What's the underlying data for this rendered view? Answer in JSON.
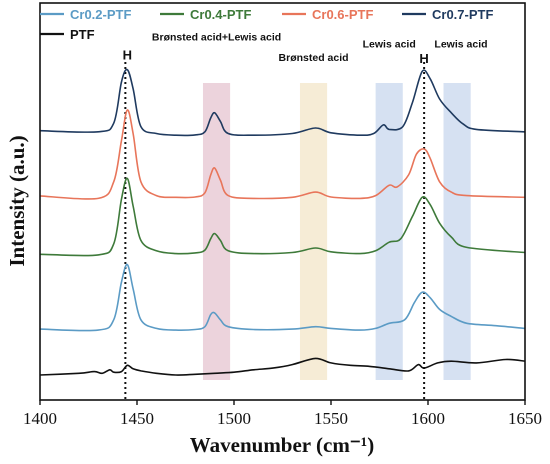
{
  "chart_data": {
    "type": "line",
    "title": "",
    "xlabel": "Wavenumber (cm⁻¹)",
    "ylabel": "Intensity (a.u.)",
    "xlim": [
      1400,
      1650
    ],
    "x_ticks": [
      "1400",
      "1450",
      "1500",
      "1550",
      "1600",
      "1650"
    ],
    "grid": false,
    "legend_position": "top",
    "series": [
      {
        "name": "Cr0.7-PTF",
        "color": "#1f3a5f",
        "points": [
          [
            1400,
            0.708
          ],
          [
            1430,
            0.705
          ],
          [
            1438,
            0.73
          ],
          [
            1442,
            0.85
          ],
          [
            1445,
            0.885
          ],
          [
            1448,
            0.83
          ],
          [
            1452,
            0.72
          ],
          [
            1460,
            0.7
          ],
          [
            1470,
            0.695
          ],
          [
            1480,
            0.696
          ],
          [
            1485,
            0.705
          ],
          [
            1488,
            0.745
          ],
          [
            1490,
            0.76
          ],
          [
            1493,
            0.735
          ],
          [
            1497,
            0.7
          ],
          [
            1510,
            0.695
          ],
          [
            1530,
            0.7
          ],
          [
            1542,
            0.716
          ],
          [
            1550,
            0.702
          ],
          [
            1565,
            0.695
          ],
          [
            1572,
            0.7
          ],
          [
            1577,
            0.725
          ],
          [
            1580,
            0.712
          ],
          [
            1587,
            0.72
          ],
          [
            1592,
            0.79
          ],
          [
            1597,
            0.88
          ],
          [
            1601,
            0.86
          ],
          [
            1606,
            0.8
          ],
          [
            1612,
            0.76
          ],
          [
            1618,
            0.728
          ],
          [
            1625,
            0.712
          ],
          [
            1650,
            0.705
          ]
        ]
      },
      {
        "name": "Cr0.6-PTF",
        "color": "#e8755a",
        "points": [
          [
            1400,
            0.519
          ],
          [
            1430,
            0.512
          ],
          [
            1438,
            0.56
          ],
          [
            1442,
            0.68
          ],
          [
            1445,
            0.768
          ],
          [
            1448,
            0.7
          ],
          [
            1452,
            0.56
          ],
          [
            1460,
            0.52
          ],
          [
            1470,
            0.515
          ],
          [
            1480,
            0.516
          ],
          [
            1485,
            0.528
          ],
          [
            1488,
            0.58
          ],
          [
            1490,
            0.6
          ],
          [
            1493,
            0.565
          ],
          [
            1497,
            0.52
          ],
          [
            1510,
            0.512
          ],
          [
            1530,
            0.515
          ],
          [
            1542,
            0.53
          ],
          [
            1550,
            0.516
          ],
          [
            1565,
            0.512
          ],
          [
            1573,
            0.52
          ],
          [
            1580,
            0.55
          ],
          [
            1584,
            0.545
          ],
          [
            1590,
            0.58
          ],
          [
            1594,
            0.64
          ],
          [
            1598,
            0.655
          ],
          [
            1601,
            0.63
          ],
          [
            1606,
            0.56
          ],
          [
            1612,
            0.53
          ],
          [
            1620,
            0.52
          ],
          [
            1650,
            0.515
          ]
        ]
      },
      {
        "name": "Cr0.4-PTF",
        "color": "#3e7a3a",
        "points": [
          [
            1400,
            0.35
          ],
          [
            1430,
            0.348
          ],
          [
            1438,
            0.38
          ],
          [
            1442,
            0.51
          ],
          [
            1445,
            0.57
          ],
          [
            1448,
            0.49
          ],
          [
            1452,
            0.39
          ],
          [
            1460,
            0.36
          ],
          [
            1470,
            0.352
          ],
          [
            1480,
            0.354
          ],
          [
            1485,
            0.362
          ],
          [
            1488,
            0.395
          ],
          [
            1490,
            0.41
          ],
          [
            1493,
            0.39
          ],
          [
            1497,
            0.36
          ],
          [
            1510,
            0.352
          ],
          [
            1530,
            0.355
          ],
          [
            1542,
            0.368
          ],
          [
            1550,
            0.357
          ],
          [
            1565,
            0.352
          ],
          [
            1573,
            0.36
          ],
          [
            1580,
            0.385
          ],
          [
            1586,
            0.395
          ],
          [
            1592,
            0.46
          ],
          [
            1597,
            0.515
          ],
          [
            1601,
            0.495
          ],
          [
            1606,
            0.44
          ],
          [
            1612,
            0.4
          ],
          [
            1620,
            0.37
          ],
          [
            1650,
            0.355
          ]
        ]
      },
      {
        "name": "Cr0.2-PTF",
        "color": "#5b9bc5",
        "points": [
          [
            1400,
            0.133
          ],
          [
            1430,
            0.13
          ],
          [
            1438,
            0.16
          ],
          [
            1442,
            0.27
          ],
          [
            1445,
            0.32
          ],
          [
            1448,
            0.25
          ],
          [
            1452,
            0.16
          ],
          [
            1460,
            0.135
          ],
          [
            1470,
            0.13
          ],
          [
            1480,
            0.132
          ],
          [
            1485,
            0.14
          ],
          [
            1488,
            0.175
          ],
          [
            1490,
            0.18
          ],
          [
            1493,
            0.16
          ],
          [
            1497,
            0.14
          ],
          [
            1510,
            0.132
          ],
          [
            1530,
            0.133
          ],
          [
            1542,
            0.14
          ],
          [
            1550,
            0.135
          ],
          [
            1565,
            0.13
          ],
          [
            1573,
            0.135
          ],
          [
            1580,
            0.15
          ],
          [
            1588,
            0.16
          ],
          [
            1593,
            0.21
          ],
          [
            1597,
            0.24
          ],
          [
            1601,
            0.225
          ],
          [
            1606,
            0.19
          ],
          [
            1612,
            0.17
          ],
          [
            1620,
            0.15
          ],
          [
            1635,
            0.143
          ],
          [
            1650,
            0.135
          ]
        ]
      },
      {
        "name": "PTF",
        "color": "#111111",
        "points": [
          [
            1400,
            0.0
          ],
          [
            1420,
            0.005
          ],
          [
            1428,
            0.01
          ],
          [
            1432,
            0.005
          ],
          [
            1436,
            0.015
          ],
          [
            1438,
            0.008
          ],
          [
            1442,
            0.01
          ],
          [
            1445,
            0.028
          ],
          [
            1448,
            0.018
          ],
          [
            1452,
            0.012
          ],
          [
            1460,
            0.005
          ],
          [
            1470,
            0.0
          ],
          [
            1480,
            0.002
          ],
          [
            1490,
            0.005
          ],
          [
            1500,
            0.008
          ],
          [
            1510,
            0.015
          ],
          [
            1520,
            0.02
          ],
          [
            1530,
            0.03
          ],
          [
            1542,
            0.048
          ],
          [
            1550,
            0.035
          ],
          [
            1560,
            0.028
          ],
          [
            1570,
            0.025
          ],
          [
            1580,
            0.018
          ],
          [
            1590,
            0.012
          ],
          [
            1595,
            0.03
          ],
          [
            1598,
            0.02
          ],
          [
            1605,
            0.035
          ],
          [
            1612,
            0.04
          ],
          [
            1625,
            0.035
          ],
          [
            1640,
            0.045
          ],
          [
            1650,
            0.04
          ]
        ]
      }
    ],
    "bands": [
      {
        "x0": 1484,
        "x1": 1498,
        "color": "#ecd3dc"
      },
      {
        "x0": 1534,
        "x1": 1548,
        "color": "#f6ecd6"
      },
      {
        "x0": 1573,
        "x1": 1587,
        "color": "#d6e1f2"
      },
      {
        "x0": 1608,
        "x1": 1622,
        "color": "#d6e1f2"
      }
    ],
    "dotted_lines": [
      1444,
      1598
    ],
    "annotations": [
      {
        "text": "Brønsted acid+Lewis acid",
        "x": 1491,
        "y": 0.97
      },
      {
        "text": "Brønsted acid",
        "x": 1541,
        "y": 0.91
      },
      {
        "text": "Lewis acid",
        "x": 1580,
        "y": 0.95
      },
      {
        "text": "Lewis acid",
        "x": 1617,
        "y": 0.95
      }
    ],
    "peak_labels": [
      {
        "text": "H",
        "x": 1445,
        "y": 0.915
      },
      {
        "text": "H",
        "x": 1598,
        "y": 0.905
      }
    ],
    "legend": [
      {
        "label": "Cr0.2-PTF",
        "color": "#5b9bc5"
      },
      {
        "label": "Cr0.4-PTF",
        "color": "#3e7a3a"
      },
      {
        "label": "Cr0.6-PTF",
        "color": "#e8755a"
      },
      {
        "label": "Cr0.7-PTF",
        "color": "#1f3a5f"
      },
      {
        "label": "PTF",
        "color": "#111111"
      }
    ]
  }
}
